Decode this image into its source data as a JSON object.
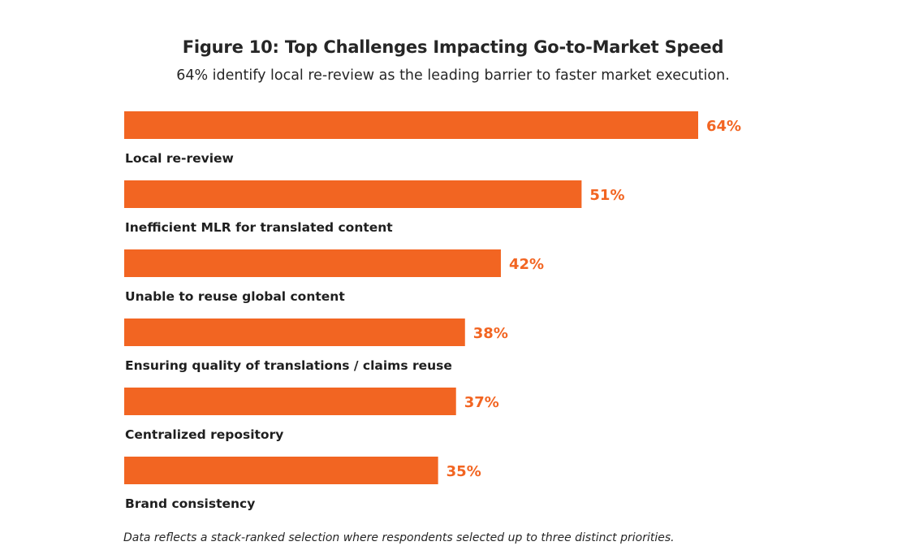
{
  "chart_data": {
    "type": "bar",
    "orientation": "horizontal",
    "title": "Figure 10: Top Challenges Impacting Go-to-Market Speed",
    "subtitle": "64% identify local re-review as the leading barrier to faster market execution.",
    "categories": [
      "Local re-review",
      "Inefficient MLR for translated content",
      "Unable to reuse global content",
      "Ensuring quality of translations / claims reuse",
      "Centralized repository",
      "Brand consistency"
    ],
    "values": [
      64,
      51,
      42,
      38,
      37,
      35
    ],
    "data_labels": [
      "64%",
      "51%",
      "42%",
      "38%",
      "37%",
      "35%"
    ],
    "unit": "%",
    "xlim": [
      0,
      64
    ],
    "grid": false,
    "legend": "none",
    "bar_color": "#f26522",
    "label_color": "#f26522",
    "footnote": "Data reflects a stack-ranked selection where respondents selected up to three distinct priorities."
  }
}
